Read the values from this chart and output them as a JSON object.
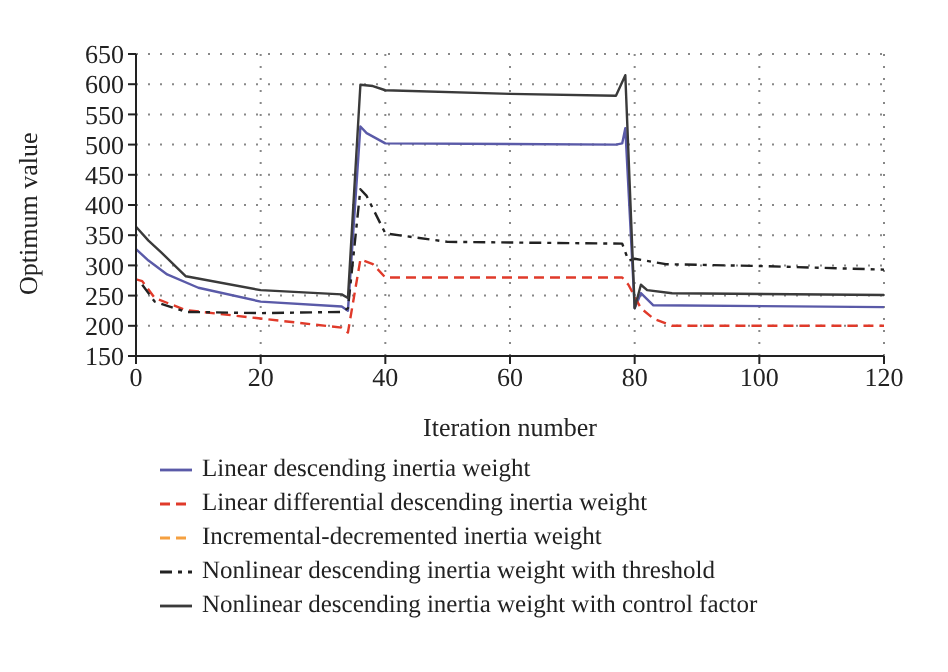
{
  "chart_data": {
    "type": "line",
    "xlabel": "Iteration number",
    "ylabel": "Optimum value",
    "xlim": [
      0,
      120
    ],
    "xticks": [
      0,
      20,
      40,
      60,
      80,
      100,
      120
    ],
    "ylim": [
      150,
      650
    ],
    "yticks": [
      150,
      200,
      250,
      300,
      350,
      400,
      450,
      500,
      550,
      600,
      650
    ],
    "grid": true,
    "legend": "bottom",
    "marker": "none",
    "series": [
      {
        "name": "Linear descending inertia weight",
        "color": "#5a5aa8",
        "line_style": "solid",
        "x": [
          0,
          2,
          5,
          10,
          20,
          33,
          34,
          36,
          37,
          40,
          77,
          78,
          78.5,
          80,
          81,
          83,
          120
        ],
        "values": [
          327,
          308,
          285,
          263,
          240,
          232,
          225,
          530,
          519,
          502,
          500,
          502,
          527,
          229,
          254,
          234,
          231
        ]
      },
      {
        "name": "Linear differential descending inertia weight",
        "color": "#e03a2a",
        "line_style": "dashed",
        "x": [
          0,
          1,
          3,
          8,
          20,
          33,
          34,
          36,
          38,
          40,
          78,
          79,
          81,
          83,
          86,
          120
        ],
        "values": [
          277,
          274,
          246,
          226,
          212,
          197,
          189,
          310,
          302,
          280,
          280,
          268,
          229,
          212,
          200,
          200
        ]
      },
      {
        "name": "Incremental-decremented inertia weight",
        "color": "#f5a040",
        "line_style": "dashed"
      },
      {
        "name": "Nonlinear descending inertia weight with threshold",
        "color": "#222222",
        "line_style": "dashdot",
        "x": [
          1,
          3,
          8,
          20,
          33,
          34,
          36,
          37,
          40,
          50,
          78,
          79,
          80,
          85,
          100,
          120
        ],
        "values": [
          268,
          240,
          223,
          221,
          223,
          229,
          426,
          415,
          353,
          339,
          336,
          308,
          311,
          302,
          299,
          293
        ]
      },
      {
        "name": "Nonlinear descending inertia weight with control factor",
        "color": "#3a3a3a",
        "line_style": "solid",
        "x": [
          0,
          2,
          4,
          8,
          20,
          33,
          34,
          36,
          38,
          40,
          60,
          77,
          78.5,
          80,
          81,
          82,
          86,
          120
        ],
        "values": [
          364,
          341,
          322,
          282,
          259,
          252,
          246,
          599,
          597,
          590,
          584,
          581,
          615,
          229,
          268,
          259,
          254,
          251
        ]
      }
    ]
  }
}
